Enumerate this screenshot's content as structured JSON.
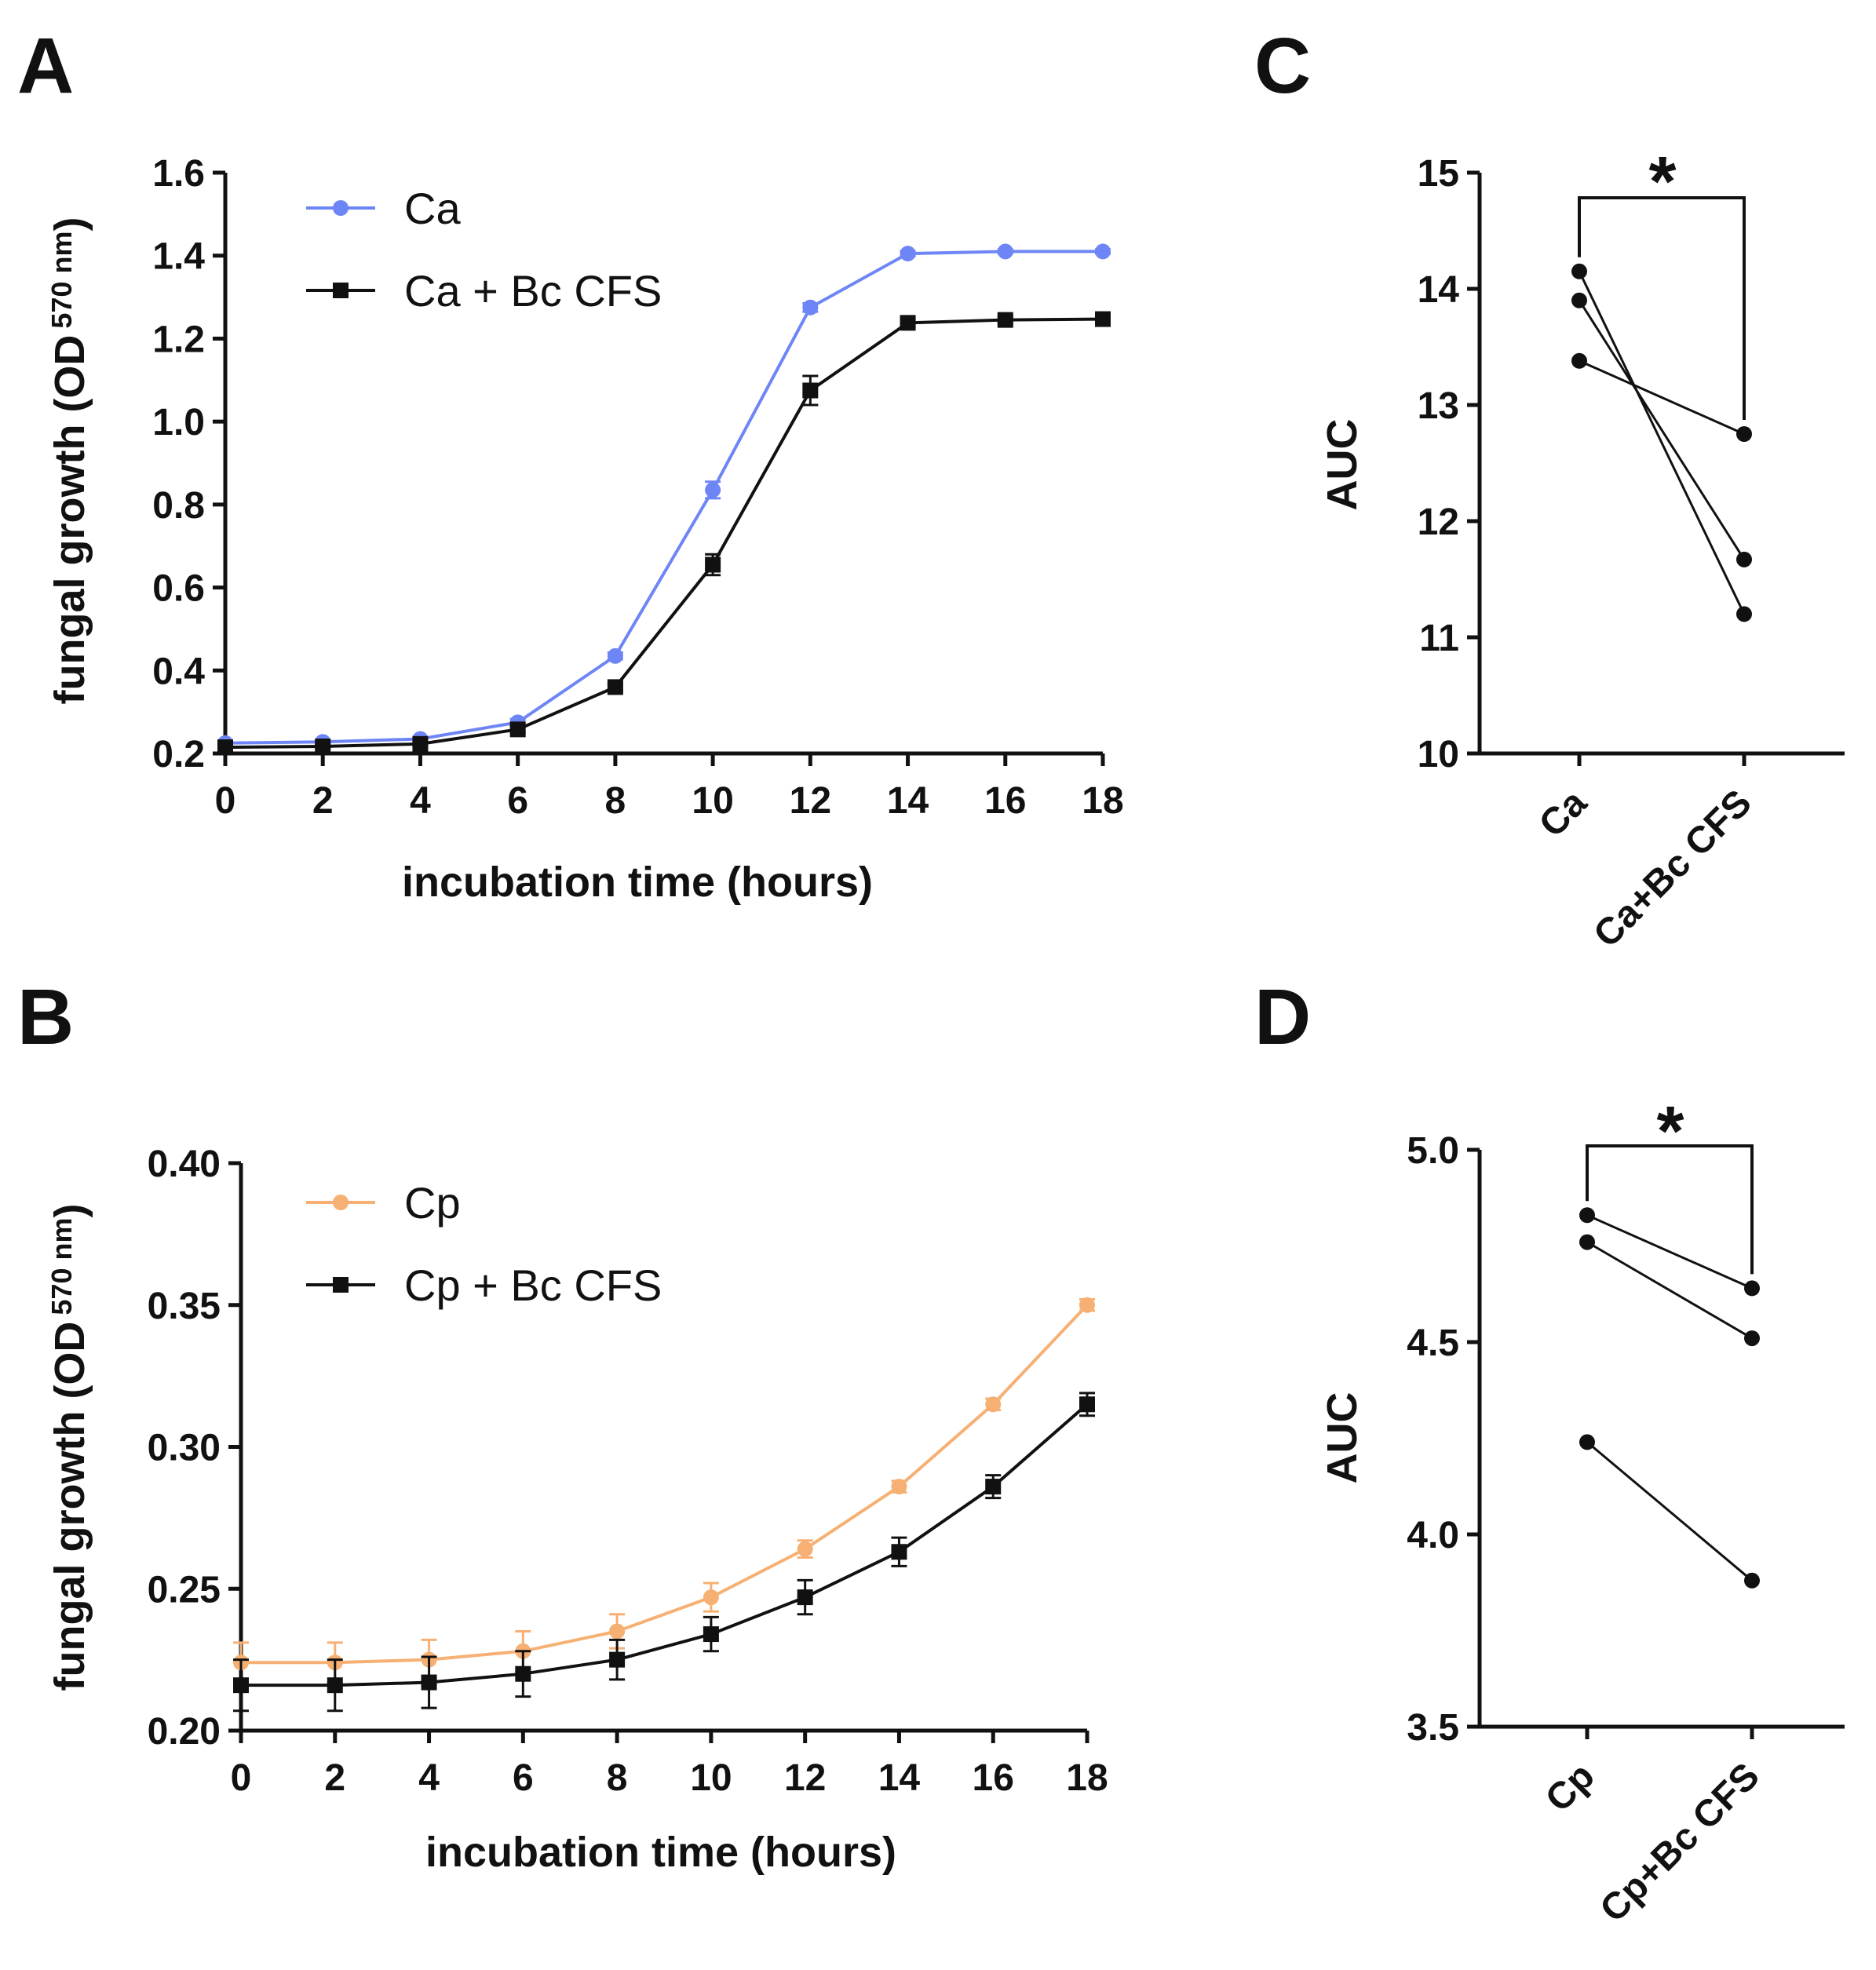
{
  "figure": {
    "panel_labels": [
      "A",
      "B",
      "C",
      "D"
    ],
    "colors": {
      "ca": "#6e86f5",
      "cp": "#f7b073",
      "treated": "#111111",
      "axis": "#111111"
    }
  },
  "chart_data": [
    {
      "id": "A",
      "type": "line",
      "xlabel": "incubation time (hours)",
      "ylabel_main": "fungal growth (OD",
      "ylabel_sub": "570 nm",
      "ylabel_end": ")",
      "xlim": [
        0,
        18
      ],
      "ylim": [
        0.2,
        1.6
      ],
      "xticks": [
        0,
        2,
        4,
        6,
        8,
        10,
        12,
        14,
        16,
        18
      ],
      "yticks": [
        "0.2",
        "0.4",
        "0.6",
        "0.8",
        "1.0",
        "1.2",
        "1.4",
        "1.6"
      ],
      "x": [
        0,
        2,
        4,
        6,
        8,
        10,
        12,
        14,
        16,
        18
      ],
      "series": [
        {
          "name": "Ca",
          "marker": "circle",
          "color": "#6e86f5",
          "values": [
            0.225,
            0.228,
            0.235,
            0.275,
            0.435,
            0.835,
            1.275,
            1.405,
            1.41,
            1.41
          ],
          "errors": [
            0.005,
            0.005,
            0.005,
            0.008,
            0.008,
            0.02,
            0.01,
            0.006,
            0.005,
            0.005
          ]
        },
        {
          "name": "Ca + Bc CFS",
          "marker": "square",
          "color": "#111111",
          "values": [
            0.215,
            0.217,
            0.223,
            0.258,
            0.36,
            0.655,
            1.075,
            1.238,
            1.245,
            1.247
          ],
          "errors": [
            0.005,
            0.005,
            0.006,
            0.008,
            0.008,
            0.025,
            0.035,
            0.01,
            0.008,
            0.008
          ]
        }
      ]
    },
    {
      "id": "B",
      "type": "line",
      "xlabel": "incubation time (hours)",
      "ylabel_main": "fungal growth (OD",
      "ylabel_sub": "570 nm",
      "ylabel_end": ")",
      "xlim": [
        0,
        18
      ],
      "ylim": [
        0.2,
        0.4
      ],
      "xticks": [
        0,
        2,
        4,
        6,
        8,
        10,
        12,
        14,
        16,
        18
      ],
      "yticks": [
        "0.20",
        "0.25",
        "0.30",
        "0.35",
        "0.40"
      ],
      "x": [
        0,
        2,
        4,
        6,
        8,
        10,
        12,
        14,
        16,
        18
      ],
      "series": [
        {
          "name": "Cp",
          "marker": "circle",
          "color": "#f7b073",
          "values": [
            0.224,
            0.224,
            0.225,
            0.228,
            0.235,
            0.247,
            0.264,
            0.286,
            0.315,
            0.35
          ],
          "errors": [
            0.007,
            0.007,
            0.007,
            0.007,
            0.006,
            0.005,
            0.003,
            0.002,
            0.002,
            0.002
          ]
        },
        {
          "name": "Cp + Bc CFS",
          "marker": "square",
          "color": "#111111",
          "values": [
            0.216,
            0.216,
            0.217,
            0.22,
            0.225,
            0.234,
            0.247,
            0.263,
            0.286,
            0.315
          ],
          "errors": [
            0.009,
            0.009,
            0.009,
            0.008,
            0.007,
            0.006,
            0.006,
            0.005,
            0.004,
            0.004
          ]
        }
      ]
    },
    {
      "id": "C",
      "type": "scatter",
      "ylabel": "AUC",
      "categories": [
        "Ca",
        "Ca+Bc CFS"
      ],
      "ylim": [
        10,
        15
      ],
      "yticks": [
        "10",
        "11",
        "12",
        "13",
        "14",
        "15"
      ],
      "pairs": [
        [
          14.15,
          11.2
        ],
        [
          13.9,
          11.67
        ],
        [
          13.38,
          12.75
        ]
      ],
      "significance": "*"
    },
    {
      "id": "D",
      "type": "scatter",
      "ylabel": "AUC",
      "categories": [
        "Cp",
        "Cp+Bc CFS"
      ],
      "ylim": [
        3.5,
        5.0
      ],
      "yticks": [
        "3.5",
        "4.0",
        "4.5",
        "5.0"
      ],
      "pairs": [
        [
          4.83,
          4.64
        ],
        [
          4.76,
          4.51
        ],
        [
          4.24,
          3.88
        ]
      ],
      "significance": "*"
    }
  ]
}
